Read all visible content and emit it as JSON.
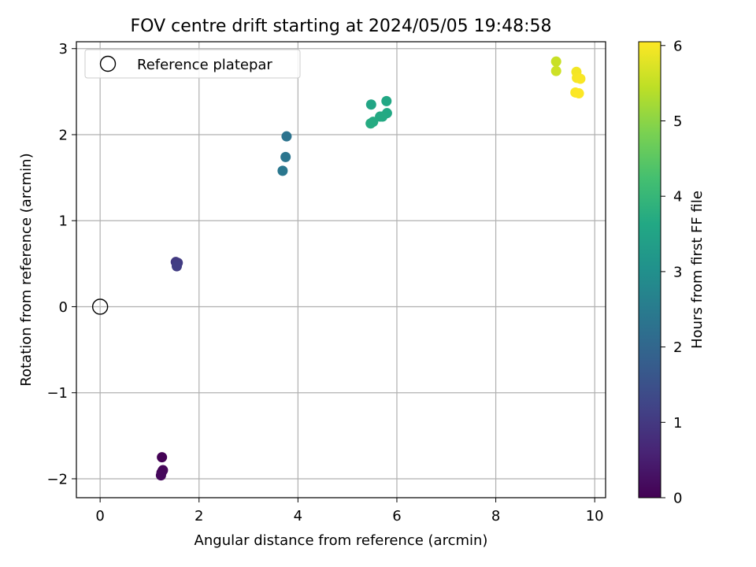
{
  "chart_data": {
    "type": "scatter",
    "title": "FOV centre drift starting at 2024/05/05 19:48:58",
    "xlabel": "Angular distance from reference (arcmin)",
    "ylabel": "Rotation from reference (arcmin)",
    "xlim": [
      -0.48,
      10.22
    ],
    "ylim": [
      -2.22,
      3.08
    ],
    "xticks": [
      0,
      2,
      4,
      6,
      8,
      10
    ],
    "xtick_labels": [
      "0",
      "2",
      "4",
      "6",
      "8",
      "10"
    ],
    "yticks": [
      -2,
      -1,
      0,
      1,
      2,
      3
    ],
    "ytick_labels": [
      "−2",
      "−1",
      "0",
      "1",
      "2",
      "3"
    ],
    "grid": true,
    "legend": {
      "placement": "top-left",
      "entries": [
        "Reference platepar"
      ]
    },
    "reference_point": {
      "label": "Reference platepar",
      "x": 0,
      "y": 0,
      "marker": "open-circle"
    },
    "colorbar": {
      "label": "Hours from first FF file",
      "range": [
        0,
        6.05
      ],
      "ticks": [
        0,
        1,
        2,
        3,
        4,
        5,
        6
      ],
      "tick_labels": [
        "0",
        "1",
        "2",
        "3",
        "4",
        "5",
        "6"
      ],
      "colormap": "viridis"
    },
    "points": [
      {
        "x": 1.25,
        "y": -1.75,
        "hours": 0.02
      },
      {
        "x": 1.26,
        "y": -1.91,
        "hours": 0.05
      },
      {
        "x": 1.24,
        "y": -1.93,
        "hours": 0.08
      },
      {
        "x": 1.27,
        "y": -1.9,
        "hours": 0.1
      },
      {
        "x": 1.23,
        "y": -1.96,
        "hours": 0.12
      },
      {
        "x": 1.53,
        "y": 0.52,
        "hours": 1.0
      },
      {
        "x": 1.57,
        "y": 0.51,
        "hours": 1.05
      },
      {
        "x": 1.55,
        "y": 0.47,
        "hours": 1.1
      },
      {
        "x": 3.77,
        "y": 1.98,
        "hours": 2.3
      },
      {
        "x": 3.75,
        "y": 1.74,
        "hours": 2.35
      },
      {
        "x": 3.69,
        "y": 1.58,
        "hours": 2.4
      },
      {
        "x": 5.48,
        "y": 2.35,
        "hours": 3.55
      },
      {
        "x": 5.79,
        "y": 2.39,
        "hours": 3.6
      },
      {
        "x": 5.8,
        "y": 2.25,
        "hours": 3.62
      },
      {
        "x": 5.66,
        "y": 2.21,
        "hours": 3.65
      },
      {
        "x": 5.71,
        "y": 2.21,
        "hours": 3.66
      },
      {
        "x": 5.52,
        "y": 2.15,
        "hours": 3.68
      },
      {
        "x": 5.47,
        "y": 2.13,
        "hours": 3.7
      },
      {
        "x": 9.22,
        "y": 2.85,
        "hours": 5.55
      },
      {
        "x": 9.22,
        "y": 2.74,
        "hours": 5.6
      },
      {
        "x": 9.63,
        "y": 2.73,
        "hours": 5.95
      },
      {
        "x": 9.64,
        "y": 2.66,
        "hours": 5.97
      },
      {
        "x": 9.71,
        "y": 2.65,
        "hours": 6.0
      },
      {
        "x": 9.61,
        "y": 2.49,
        "hours": 6.02
      },
      {
        "x": 9.68,
        "y": 2.48,
        "hours": 6.04
      }
    ]
  }
}
